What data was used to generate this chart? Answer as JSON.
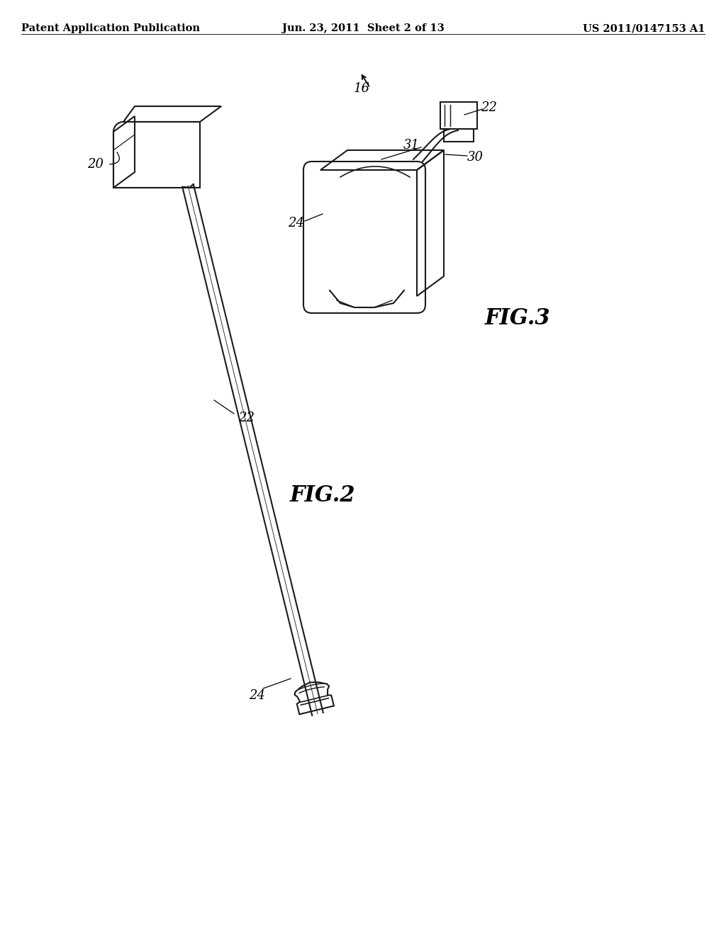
{
  "bg_color": "#ffffff",
  "header_left": "Patent Application Publication",
  "header_center": "Jun. 23, 2011  Sheet 2 of 13",
  "header_right": "US 2011/0147153 A1",
  "fig2_label": "FIG.2",
  "fig3_label": "FIG.3",
  "label_20": "20",
  "label_22_fig2": "22",
  "label_24_fig2": "24",
  "label_16": "16",
  "label_22_fig3": "22",
  "label_24_fig3": "24",
  "label_30": "30",
  "label_31": "31",
  "line_color": "#1a1a1a",
  "text_color": "#000000",
  "header_fontsize": 10.5,
  "label_fontsize": 13,
  "fig_label_fontsize": 22
}
